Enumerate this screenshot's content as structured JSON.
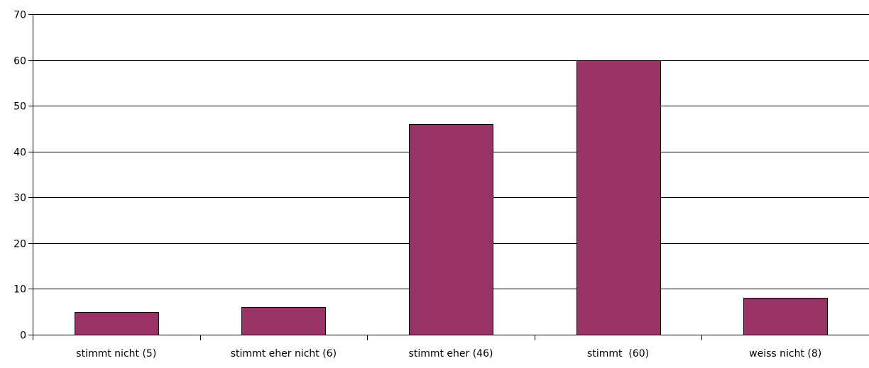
{
  "chart_data": {
    "type": "bar",
    "categories": [
      "stimmt nicht (5)",
      "stimmt eher nicht (6)",
      "stimmt eher (46)",
      "stimmt  (60)",
      "weiss nicht (8)"
    ],
    "values": [
      5,
      6,
      46,
      60,
      8
    ],
    "ylim": [
      0,
      70
    ],
    "yticks": [
      0,
      10,
      20,
      30,
      40,
      50,
      60,
      70
    ],
    "grid": true,
    "legend": "none",
    "title": "",
    "xlabel": "",
    "ylabel": "",
    "bar_color": "#993366",
    "bar_edge_color": "#000000"
  }
}
